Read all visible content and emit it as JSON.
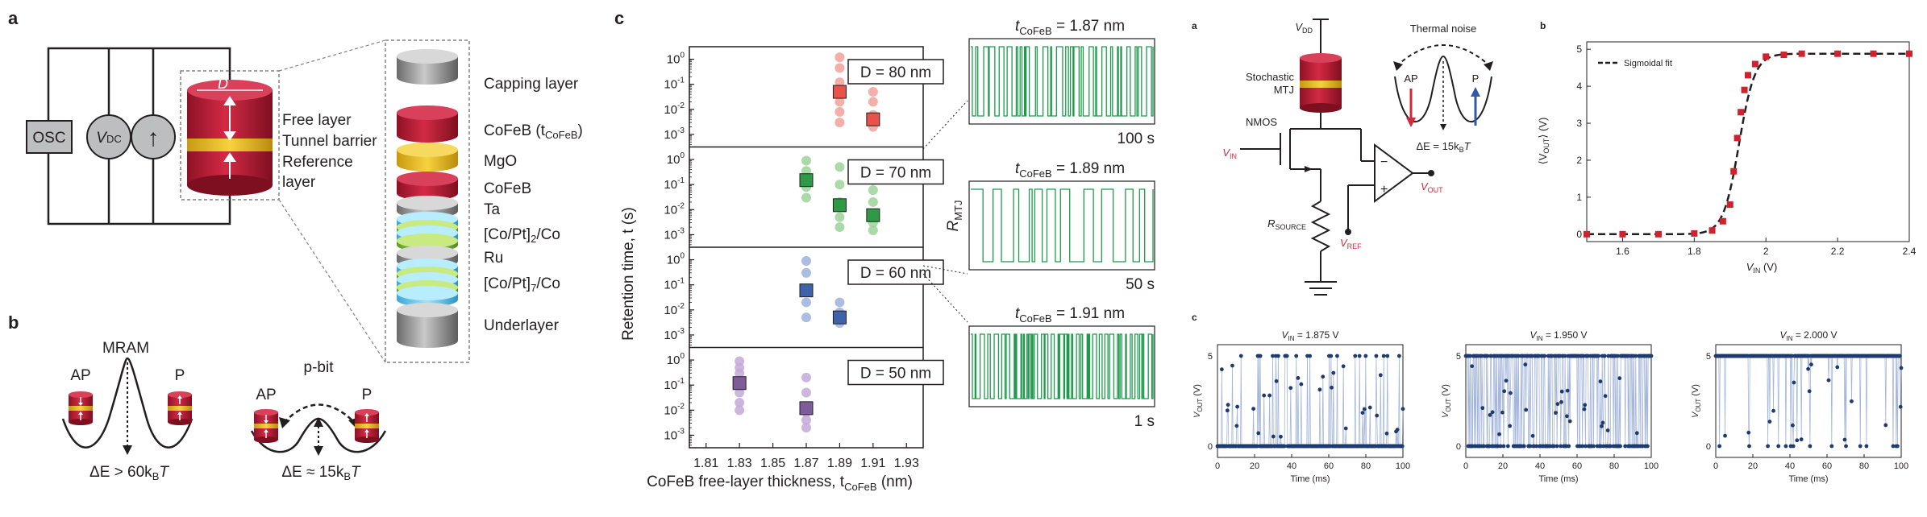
{
  "left": {
    "panel_a": "a",
    "panel_b": "b",
    "panel_c": "c",
    "osc": "OSC",
    "vdc_v": "V",
    "vdc_sub": "DC",
    "current_symbol": "↑",
    "d_label": "D",
    "free_layer": "Free layer",
    "tunnel_barrier": "Tunnel barrier",
    "reference_layer_1": "Reference",
    "reference_layer_2": "layer",
    "layers": [
      "Capping layer",
      "CoFeB (t",
      "MgO",
      "CoFeB",
      "Ta",
      "[Co/Pt]",
      "Ru",
      "[Co/Pt]",
      "Underlayer"
    ],
    "cofeb_sub": "CoFeB",
    "copt1_sub": "2",
    "copt1_tail": "/Co",
    "copt2_sub": "7",
    "copt2_tail": "/Co",
    "mram": "MRAM",
    "pbit": "p-bit",
    "ap": "AP",
    "p": "P",
    "de_mram_pre": "ΔE > 60k",
    "de_pbit_pre": "ΔE ≈ 15k",
    "de_sub": "B",
    "de_tail": "T"
  },
  "retention": {
    "ylabel": "Retention time, t (s)",
    "xlabel_pre": "CoFeB free-layer thickness, t",
    "xlabel_sub": "CoFeB",
    "xlabel_post": " (nm)",
    "xticks": [
      "1.81",
      "1.83",
      "1.85",
      "1.87",
      "1.89",
      "1.91",
      "1.93"
    ],
    "yticks_base": "10",
    "yticks_exp": [
      "0",
      "-1",
      "-2",
      "-3"
    ],
    "subpanels": [
      {
        "label": "D = 80 nm",
        "color": "#e8524a",
        "light": "#f2a19a",
        "points": [
          {
            "x": 1.89,
            "scatter": [
              1.2,
              0.45,
              0.12,
              0.02,
              0.008,
              0.003
            ],
            "mean": 0.05
          },
          {
            "x": 1.91,
            "scatter": [
              0.05,
              0.02,
              0.006,
              0.002
            ],
            "mean": 0.004
          }
        ]
      },
      {
        "label": "D = 70 nm",
        "color": "#2f9a45",
        "light": "#9ed29a",
        "points": [
          {
            "x": 1.87,
            "scatter": [
              0.9,
              0.35,
              0.08,
              0.03
            ],
            "mean": 0.15
          },
          {
            "x": 1.89,
            "scatter": [
              0.5,
              0.1,
              0.02,
              0.005,
              0.002
            ],
            "mean": 0.015
          },
          {
            "x": 1.91,
            "scatter": [
              0.15,
              0.06,
              0.02,
              0.003,
              0.0015
            ],
            "mean": 0.006
          }
        ]
      },
      {
        "label": "D = 60 nm",
        "color": "#3f63ab",
        "light": "#9fb2dc",
        "points": [
          {
            "x": 1.87,
            "scatter": [
              0.9,
              0.3,
              0.02,
              0.005
            ],
            "mean": 0.06
          },
          {
            "x": 1.89,
            "scatter": [
              0.02,
              0.008,
              0.004,
              0.003
            ],
            "mean": 0.005
          }
        ]
      },
      {
        "label": "D = 50 nm",
        "color": "#7e5b9a",
        "light": "#c3a9d8",
        "points": [
          {
            "x": 1.83,
            "scatter": [
              0.9,
              0.5,
              0.3,
              0.05,
              0.02,
              0.01
            ],
            "mean": 0.12
          },
          {
            "x": 1.87,
            "scatter": [
              0.2,
              0.05,
              0.008,
              0.004,
              0.002
            ],
            "mean": 0.012
          }
        ]
      }
    ],
    "xlim": [
      1.8,
      1.94
    ],
    "ylim_exp": [
      -3.5,
      0.5
    ]
  },
  "traces": {
    "rmtj_pre": "R",
    "rmtj_sub": "MTJ",
    "items": [
      {
        "title_pre": "t",
        "title_sub": "CoFeB",
        "title_post": " = 1.87 nm",
        "time": "100 s",
        "density": 60
      },
      {
        "title_pre": "t",
        "title_sub": "CoFeB",
        "title_post": " = 1.89 nm",
        "time": "50 s",
        "density": 26
      },
      {
        "title_pre": "t",
        "title_sub": "CoFeB",
        "title_post": " = 1.91 nm",
        "time": "1 s",
        "density": 80
      }
    ]
  },
  "right": {
    "panel_a": "a",
    "panel_b": "b",
    "panel_c": "c",
    "vdd_pre": "V",
    "vdd_sub": "DD",
    "stochastic_mtj_1": "Stochastic",
    "stochastic_mtj_2": "MTJ",
    "nmos": "NMOS",
    "vin_pre": "V",
    "vin_sub": "IN",
    "vout_pre": "V",
    "vout_sub": "OUT",
    "vref_pre": "V",
    "vref_sub": "REF",
    "rsource_pre": "R",
    "rsource_sub": "SOURCE",
    "thermal_noise": "Thermal noise",
    "ap": "AP",
    "p": "P",
    "de_pre": "ΔE = 15k",
    "de_sub": "B",
    "de_tail": "T",
    "minus": "−",
    "plus": "+"
  },
  "sigmoid": {
    "legend": "Sigmoidal fit",
    "ylabel_pre": "⟨V",
    "ylabel_sub": "OUT",
    "ylabel_post": "⟩ (V)",
    "xlabel_pre": "V",
    "xlabel_sub": "IN",
    "xlabel_post": " (V)",
    "xticks": [
      "1.6",
      "1.8",
      "2",
      "2.2",
      "2.4"
    ],
    "yticks": [
      "0",
      "1",
      "2",
      "3",
      "4",
      "5"
    ],
    "xlim": [
      1.5,
      2.4
    ],
    "ylim": [
      -0.2,
      5.2
    ],
    "x": [
      1.5,
      1.6,
      1.7,
      1.8,
      1.85,
      1.88,
      1.9,
      1.91,
      1.92,
      1.93,
      1.94,
      1.95,
      1.97,
      2.0,
      2.05,
      2.1,
      2.2,
      2.3,
      2.4
    ],
    "y": [
      0.0,
      0.0,
      0.0,
      0.02,
      0.1,
      0.35,
      0.8,
      1.7,
      2.6,
      3.3,
      3.9,
      4.3,
      4.6,
      4.8,
      4.85,
      4.88,
      4.88,
      4.88,
      4.88
    ]
  },
  "timeseries": {
    "ylabel_pre": "V",
    "ylabel_sub": "OUT",
    "ylabel_post": " (V)",
    "xlabel": "Time (ms)",
    "xticks": [
      "0",
      "20",
      "40",
      "60",
      "80",
      "100"
    ],
    "yticks": [
      "0",
      "5"
    ],
    "panels": [
      {
        "title_pre": "V",
        "title_sub": "IN",
        "title_post": " = 1.875 V",
        "p_high": 0.08,
        "seed": 3
      },
      {
        "title_pre": "V",
        "title_sub": "IN",
        "title_post": " = 1.950 V",
        "p_high": 0.55,
        "seed": 7
      },
      {
        "title_pre": "V",
        "title_sub": "IN",
        "title_post": " = 2.000 V",
        "p_high": 0.92,
        "seed": 11
      }
    ]
  }
}
